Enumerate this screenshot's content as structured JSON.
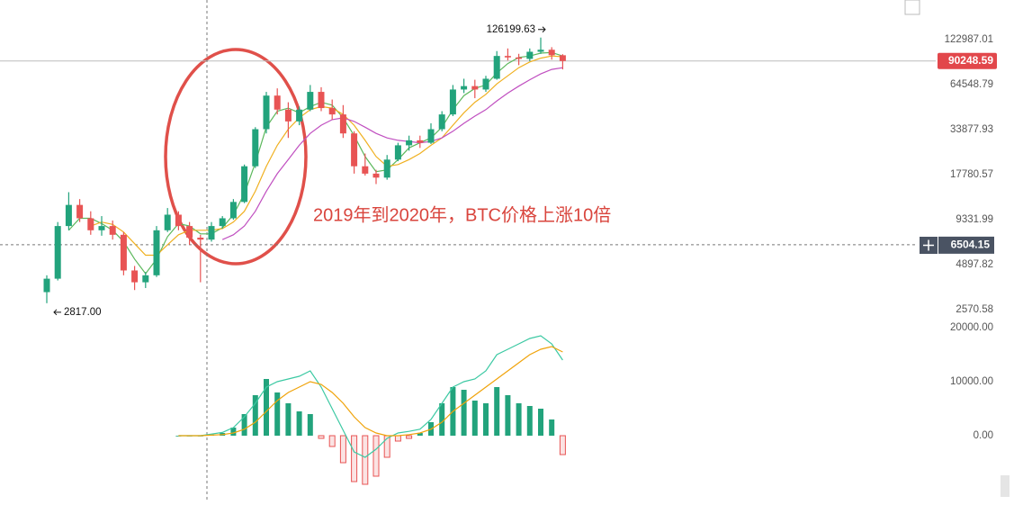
{
  "chart_data": [
    {
      "type": "candlestick",
      "annotation": "2019年到2020年，BTC价格上涨10倍",
      "log_scale": true,
      "ylim": [
        2200,
        200000
      ],
      "yticks": [
        122987.01,
        64548.79,
        33877.93,
        17780.57,
        9331.99,
        4897.82,
        2570.58
      ],
      "last_price": 90248.59,
      "crosshair_price": 6504.15,
      "extreme_labels": {
        "high": "126199.63",
        "low": "2817.00"
      },
      "up_color": "#22a37c",
      "down_color": "#e85454",
      "candles": [
        [
          3300,
          4200,
          2817,
          4000
        ],
        [
          4000,
          9000,
          3900,
          8500
        ],
        [
          8500,
          13800,
          8000,
          11500
        ],
        [
          11500,
          12500,
          9000,
          9500
        ],
        [
          9500,
          10500,
          7500,
          8000
        ],
        [
          8000,
          9800,
          7400,
          8500
        ],
        [
          8500,
          9200,
          7000,
          7500
        ],
        [
          7500,
          7800,
          4200,
          4500
        ],
        [
          4500,
          4800,
          3400,
          3800
        ],
        [
          3800,
          4400,
          3500,
          4200
        ],
        [
          4200,
          8500,
          4100,
          8000
        ],
        [
          8000,
          11000,
          7800,
          10000
        ],
        [
          10000,
          10500,
          8000,
          8500
        ],
        [
          8500,
          9000,
          6500,
          7200
        ],
        [
          7200,
          7500,
          3800,
          7000
        ],
        [
          7000,
          9000,
          6800,
          8500
        ],
        [
          8500,
          9800,
          8200,
          9500
        ],
        [
          9500,
          12500,
          9300,
          12000
        ],
        [
          12000,
          20500,
          11800,
          20000
        ],
        [
          20000,
          35000,
          19500,
          34000
        ],
        [
          34000,
          58000,
          32000,
          55000
        ],
        [
          55000,
          61000,
          42000,
          45000
        ],
        [
          45000,
          50000,
          30000,
          38000
        ],
        [
          38000,
          47000,
          36000,
          45000
        ],
        [
          45000,
          64000,
          44000,
          58000
        ],
        [
          58000,
          62000,
          44000,
          46000
        ],
        [
          46000,
          52000,
          39000,
          42000
        ],
        [
          42000,
          48000,
          30000,
          32000
        ],
        [
          32000,
          33000,
          18000,
          20000
        ],
        [
          20000,
          24000,
          17500,
          18000
        ],
        [
          18000,
          19000,
          15500,
          17000
        ],
        [
          17000,
          23500,
          16500,
          22000
        ],
        [
          22000,
          28000,
          21500,
          27000
        ],
        [
          27000,
          31000,
          25000,
          29000
        ],
        [
          29000,
          31000,
          26000,
          28000
        ],
        [
          28000,
          37000,
          27500,
          34000
        ],
        [
          34000,
          44000,
          33000,
          42000
        ],
        [
          42000,
          64000,
          41000,
          60000
        ],
        [
          60000,
          70000,
          57000,
          63000
        ],
        [
          63000,
          69000,
          53000,
          60000
        ],
        [
          60000,
          73000,
          58000,
          70000
        ],
        [
          70000,
          104000,
          69000,
          97000
        ],
        [
          97000,
          108000,
          91000,
          95000
        ],
        [
          95000,
          100000,
          85000,
          93000
        ],
        [
          93000,
          108000,
          90000,
          103000
        ],
        [
          103000,
          126199.63,
          100000,
          106000
        ],
        [
          106000,
          110000,
          92000,
          98000
        ],
        [
          98000,
          99500,
          80000,
          90248.59
        ]
      ],
      "series": [
        {
          "color": "#5cb85c",
          "values": [
            null,
            null,
            8000,
            9500,
            9500,
            8800,
            8000,
            6800,
            5300,
            4300,
            5300,
            7300,
            8800,
            8500,
            7600,
            7600,
            8300,
            10000,
            13500,
            21000,
            35000,
            44000,
            46000,
            43000,
            47000,
            50000,
            48000,
            40000,
            31000,
            23000,
            18500,
            19000,
            22000,
            26000,
            28000,
            30000,
            35000,
            45000,
            55000,
            61000,
            64000,
            76000,
            87000,
            95000,
            97000,
            101000,
            102000,
            97000
          ]
        },
        {
          "color": "#f0b020",
          "values": [
            null,
            null,
            null,
            null,
            8500,
            9000,
            8700,
            7800,
            6600,
            5600,
            5600,
            6500,
            7500,
            8000,
            8000,
            8000,
            8200,
            9000,
            10500,
            14000,
            20000,
            27000,
            34000,
            40000,
            45000,
            47000,
            46000,
            42000,
            36000,
            29000,
            23000,
            20000,
            20500,
            22000,
            24000,
            27000,
            30000,
            36000,
            43000,
            50000,
            56000,
            65000,
            73000,
            82000,
            89000,
            94000,
            97000,
            96000
          ]
        },
        {
          "color": "#c04fc0",
          "values": [
            null,
            null,
            null,
            null,
            null,
            null,
            null,
            null,
            null,
            null,
            null,
            null,
            null,
            null,
            null,
            null,
            7000,
            7500,
            8500,
            10500,
            14000,
            18000,
            22000,
            27000,
            32000,
            36000,
            39000,
            40000,
            38000,
            35000,
            32000,
            30000,
            29000,
            28500,
            28000,
            28500,
            30000,
            33000,
            37000,
            41000,
            45000,
            51000,
            57000,
            63000,
            69000,
            75000,
            80000,
            82000
          ]
        }
      ]
    },
    {
      "type": "macd",
      "ylim": [
        -10000,
        21500
      ],
      "yticks": [
        {
          "value": 20000,
          "label": "20000.00"
        },
        {
          "value": 10000,
          "label": "10000.00"
        },
        {
          "value": 0,
          "label": "0.00"
        }
      ],
      "up_color": "#22a37c",
      "down_color": "#e85454",
      "histogram": [
        null,
        null,
        null,
        null,
        null,
        null,
        null,
        null,
        null,
        null,
        null,
        null,
        0,
        0,
        0,
        200,
        500,
        1500,
        4000,
        7500,
        10500,
        8000,
        6000,
        4500,
        4000,
        -500,
        -2000,
        -5000,
        -8500,
        -9000,
        -7500,
        -4000,
        -1000,
        -500,
        500,
        2500,
        6000,
        9000,
        8500,
        6500,
        6000,
        9000,
        7500,
        6000,
        5500,
        5000,
        3000,
        -3500
      ],
      "series": [
        {
          "color": "#3cc9a3",
          "values": [
            null,
            null,
            null,
            null,
            null,
            null,
            null,
            null,
            null,
            null,
            null,
            null,
            0,
            0,
            0,
            300,
            600,
            1500,
            3500,
            6000,
            9000,
            10000,
            10500,
            11000,
            12000,
            9000,
            5000,
            1000,
            -3000,
            -4000,
            -2500,
            -500,
            500,
            800,
            1200,
            3000,
            6000,
            9000,
            10000,
            10500,
            12000,
            15000,
            16000,
            17000,
            18000,
            18500,
            17000,
            14000
          ]
        },
        {
          "color": "#f0a30a",
          "values": [
            null,
            null,
            null,
            null,
            null,
            null,
            null,
            null,
            null,
            null,
            null,
            null,
            0,
            0,
            0,
            100,
            200,
            500,
            1200,
            2500,
            4500,
            6500,
            8000,
            9000,
            10000,
            9500,
            8000,
            6000,
            3500,
            1500,
            500,
            0,
            0,
            200,
            500,
            1200,
            2500,
            4500,
            6000,
            7500,
            9000,
            10500,
            12000,
            13500,
            15000,
            16000,
            16500,
            15500
          ]
        }
      ]
    }
  ]
}
